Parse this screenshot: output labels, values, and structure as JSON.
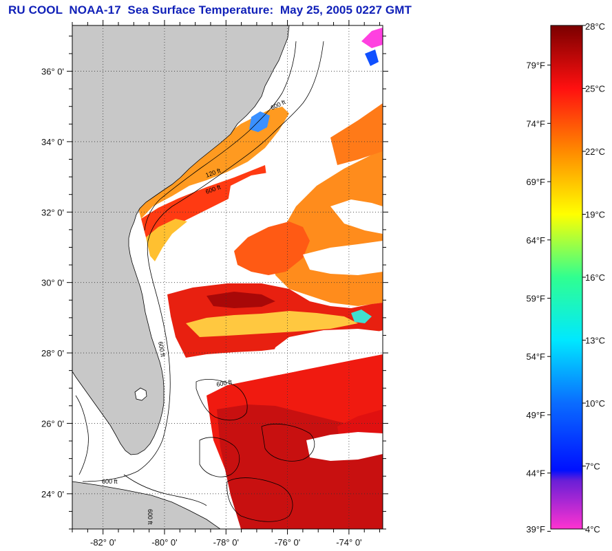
{
  "title": "RU COOL  NOAA-17  Sea Surface Temperature:  May 25, 2005 0227 GMT",
  "map": {
    "lon_range": [
      -83.0,
      -72.9
    ],
    "lat_range": [
      23.0,
      37.3
    ],
    "lon_ticks": [
      {
        "value": -82,
        "label": "-82° 0'"
      },
      {
        "value": -80,
        "label": "-80° 0'"
      },
      {
        "value": -78,
        "label": "-78° 0'"
      },
      {
        "value": -76,
        "label": "-76° 0'"
      },
      {
        "value": -74,
        "label": "-74° 0'"
      }
    ],
    "lat_ticks": [
      {
        "value": 24,
        "label": "24° 0'"
      },
      {
        "value": 26,
        "label": "26° 0'"
      },
      {
        "value": 28,
        "label": "28° 0'"
      },
      {
        "value": 30,
        "label": "30° 0'"
      },
      {
        "value": 32,
        "label": "32° 0'"
      },
      {
        "value": 34,
        "label": "34° 0'"
      },
      {
        "value": 36,
        "label": "36° 0'"
      }
    ],
    "grid": true,
    "land_color": "#c8c8c8",
    "cloud_color": "#ffffff",
    "contour_labels": [
      "600 ft",
      "120 ft",
      "600 ft",
      "600 ft",
      "600 ft",
      "600 ft",
      "600 ft"
    ]
  },
  "colorbar": {
    "range_c": [
      4,
      28
    ],
    "celsius": [
      {
        "value": 4,
        "label": "4°C"
      },
      {
        "value": 7,
        "label": "7°C"
      },
      {
        "value": 10,
        "label": "10°C"
      },
      {
        "value": 13,
        "label": "13°C"
      },
      {
        "value": 16,
        "label": "16°C"
      },
      {
        "value": 19,
        "label": "19°C"
      },
      {
        "value": 22,
        "label": "22°C"
      },
      {
        "value": 25,
        "label": "25°C"
      },
      {
        "value": 28,
        "label": "28°C"
      }
    ],
    "fahrenheit": [
      {
        "value": 39,
        "label": "39°F"
      },
      {
        "value": 44,
        "label": "44°F"
      },
      {
        "value": 49,
        "label": "49°F"
      },
      {
        "value": 54,
        "label": "54°F"
      },
      {
        "value": 59,
        "label": "59°F"
      },
      {
        "value": 64,
        "label": "64°F"
      },
      {
        "value": 69,
        "label": "69°F"
      },
      {
        "value": 74,
        "label": "74°F"
      },
      {
        "value": 79,
        "label": "79°F"
      }
    ],
    "stops": [
      {
        "c": 4,
        "color": "#ff33d0"
      },
      {
        "c": 6.3,
        "color": "#6a1fd6"
      },
      {
        "c": 6.8,
        "color": "#0010ff"
      },
      {
        "c": 10,
        "color": "#0a6cff"
      },
      {
        "c": 13,
        "color": "#00e8ff"
      },
      {
        "c": 16,
        "color": "#30ff90"
      },
      {
        "c": 19,
        "color": "#ffff00"
      },
      {
        "c": 22,
        "color": "#ff8a00"
      },
      {
        "c": 25,
        "color": "#ff1010"
      },
      {
        "c": 28,
        "color": "#7a0000"
      }
    ]
  }
}
